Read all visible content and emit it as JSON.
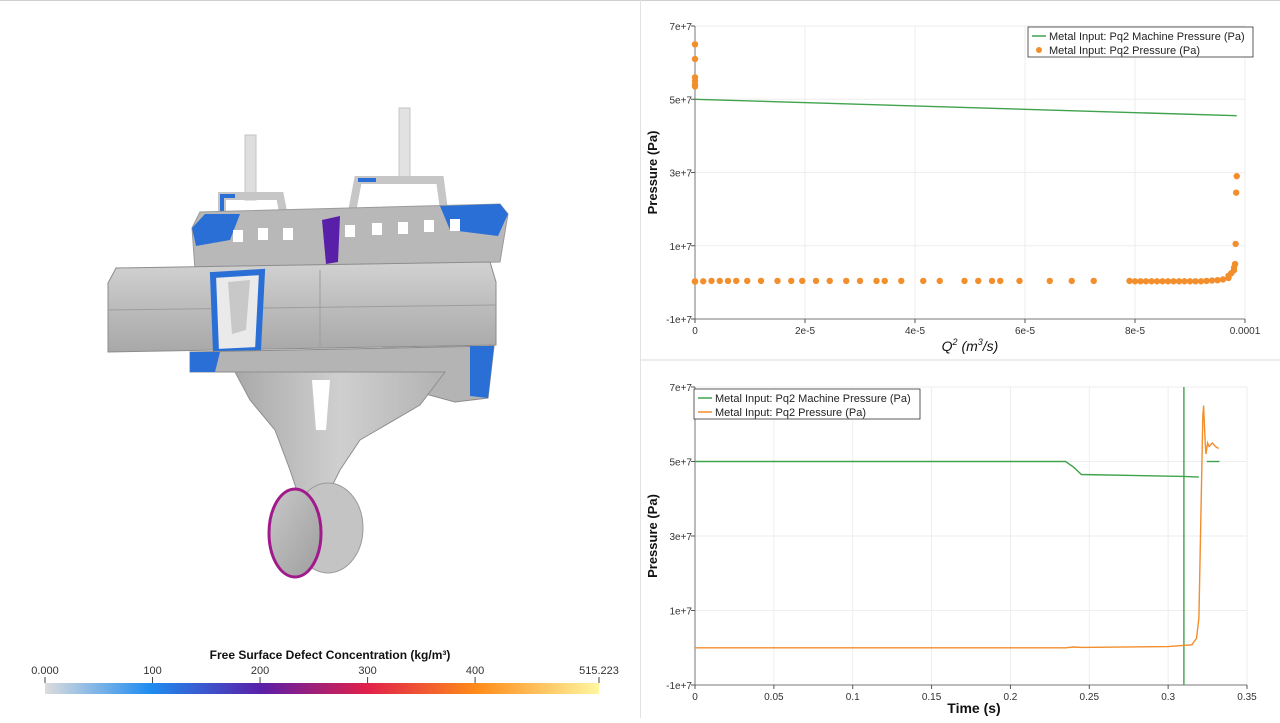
{
  "viewport": {
    "colorbar": {
      "title": "Free Surface Defect Concentration (kg/m³)",
      "ticks": [
        {
          "value": 0,
          "label": "0.000"
        },
        {
          "value": 100,
          "label": "100"
        },
        {
          "value": 200,
          "label": "200"
        },
        {
          "value": 300,
          "label": "300"
        },
        {
          "value": 400,
          "label": "400"
        },
        {
          "value": 515.223,
          "label": "515.223"
        }
      ],
      "range": [
        0,
        515.223
      ],
      "stops": [
        "#dcdcdc",
        "#1e8cf0",
        "#5a1fa8",
        "#e0204a",
        "#ff8c1a",
        "#fff6a0"
      ]
    },
    "model": {
      "base_color": "#bdbdbd",
      "defect_colors": [
        "#2a6fd6",
        "#5a1fa8",
        "#b0107a"
      ]
    }
  },
  "chart_data": [
    {
      "type": "scatter",
      "x_label_base": "Q",
      "x_label_sup": "2",
      "x_label_paren_open": "(",
      "x_label_unit_base": "m",
      "x_label_unit_sup": "3",
      "x_label_unit_rest": "/s)",
      "ylabel": "Pressure (Pa)",
      "xlim": [
        0,
        0.0001
      ],
      "ylim": [
        -10000000,
        70000000
      ],
      "xticks": [
        {
          "value": 0,
          "label": "0"
        },
        {
          "value": 2e-05,
          "label": "2e-5"
        },
        {
          "value": 4e-05,
          "label": "4e-5"
        },
        {
          "value": 6e-05,
          "label": "6e-5"
        },
        {
          "value": 8e-05,
          "label": "8e-5"
        },
        {
          "value": 0.0001,
          "label": "0.0001"
        }
      ],
      "yticks": [
        {
          "value": -10000000,
          "label": "-1e+7"
        },
        {
          "value": 10000000,
          "label": "1e+7"
        },
        {
          "value": 30000000,
          "label": "3e+7"
        },
        {
          "value": 50000000,
          "label": "5e+7"
        },
        {
          "value": 70000000,
          "label": "7e+7"
        }
      ],
      "legend_position": "top-right",
      "series": [
        {
          "name": "Metal Input: Pq2 Machine Pressure  (Pa)",
          "kind": "line",
          "color": "#3fa34d",
          "x": [
            0,
            9.85e-05
          ],
          "y": [
            50000000,
            45500000
          ]
        },
        {
          "name": "Metal Input: Pq2 Pressure  (Pa)",
          "kind": "points",
          "color": "#f28e2b",
          "x": [
            0,
            0,
            0,
            0,
            0,
            0,
            0,
            0,
            1.5e-06,
            3e-06,
            4.5e-06,
            6e-06,
            7.5e-06,
            9.5e-06,
            1.2e-05,
            1.5e-05,
            1.75e-05,
            1.95e-05,
            2.2e-05,
            2.45e-05,
            2.75e-05,
            3e-05,
            3.3e-05,
            3.45e-05,
            3.75e-05,
            4.15e-05,
            4.45e-05,
            4.9e-05,
            5.15e-05,
            5.4e-05,
            5.55e-05,
            5.9e-05,
            6.45e-05,
            6.85e-05,
            7.25e-05,
            7.9e-05,
            8e-05,
            8.1e-05,
            8.2e-05,
            8.3e-05,
            8.4e-05,
            8.5e-05,
            8.6e-05,
            8.7e-05,
            8.8e-05,
            8.9e-05,
            9e-05,
            9.1e-05,
            9.2e-05,
            9.3e-05,
            9.4e-05,
            9.5e-05,
            9.6e-05,
            9.7e-05,
            9.7e-05,
            9.75e-05,
            9.8e-05,
            9.8e-05,
            9.82e-05,
            9.83e-05,
            9.84e-05,
            9.85e-05
          ],
          "y": [
            65000000,
            61000000,
            56000000,
            55000000,
            54000000,
            53500000,
            300000,
            200000,
            300000,
            400000,
            400000,
            400000,
            400000,
            400000,
            400000,
            400000,
            400000,
            400000,
            400000,
            400000,
            400000,
            400000,
            400000,
            400000,
            400000,
            400000,
            400000,
            400000,
            400000,
            400000,
            400000,
            400000,
            400000,
            400000,
            400000,
            400000,
            300000,
            300000,
            300000,
            300000,
            300000,
            300000,
            300000,
            300000,
            300000,
            300000,
            300000,
            300000,
            300000,
            400000,
            500000,
            600000,
            800000,
            1200000,
            1800000,
            2500000,
            3300000,
            4000000,
            5000000,
            10500000,
            24500000,
            29000000
          ]
        }
      ]
    },
    {
      "type": "line",
      "xlabel": "Time (s)",
      "ylabel": "Pressure (Pa)",
      "xlim": [
        0,
        0.35
      ],
      "ylim": [
        -10000000,
        70000000
      ],
      "xticks": [
        {
          "value": 0,
          "label": "0"
        },
        {
          "value": 0.05,
          "label": "0.05"
        },
        {
          "value": 0.1,
          "label": "0.1"
        },
        {
          "value": 0.15,
          "label": "0.15"
        },
        {
          "value": 0.2,
          "label": "0.2"
        },
        {
          "value": 0.25,
          "label": "0.25"
        },
        {
          "value": 0.3,
          "label": "0.3"
        },
        {
          "value": 0.35,
          "label": "0.35"
        }
      ],
      "yticks": [
        {
          "value": -10000000,
          "label": "-1e+7"
        },
        {
          "value": 10000000,
          "label": "1e+7"
        },
        {
          "value": 30000000,
          "label": "3e+7"
        },
        {
          "value": 50000000,
          "label": "5e+7"
        },
        {
          "value": 70000000,
          "label": "7e+7"
        }
      ],
      "legend_position": "top-left",
      "series": [
        {
          "name": "Metal Input: Pq2 Machine Pressure  (Pa)",
          "color": "#3fa34d",
          "segments": [
            {
              "x": [
                0,
                0.235,
                0.24,
                0.245,
                0.31,
                0.3195
              ],
              "y": [
                50000000,
                50000000,
                48500000,
                46500000,
                46000000,
                45800000
              ]
            },
            {
              "x": [
                0.31,
                0.31
              ],
              "y": [
                70000000,
                -10000000
              ]
            },
            {
              "x": [
                0.3245,
                0.3325
              ],
              "y": [
                50000000,
                50000000
              ]
            }
          ]
        },
        {
          "name": "Metal Input: Pq2 Pressure  (Pa)",
          "color": "#f28e2b",
          "segments": [
            {
              "x": [
                0,
                0.235,
                0.24,
                0.245,
                0.3,
                0.315,
                0.318,
                0.3195,
                0.3205,
                0.3215,
                0.322,
                0.3225,
                0.323,
                0.3235,
                0.324,
                0.325,
                0.326,
                0.328,
                0.33,
                0.332
              ],
              "y": [
                0,
                0,
                200000,
                100000,
                300000,
                800000,
                2500000,
                8000000,
                30000000,
                52000000,
                62000000,
                65000000,
                60000000,
                55000000,
                52000000,
                55000000,
                54000000,
                55000000,
                54000000,
                53500000
              ]
            }
          ]
        }
      ]
    }
  ]
}
